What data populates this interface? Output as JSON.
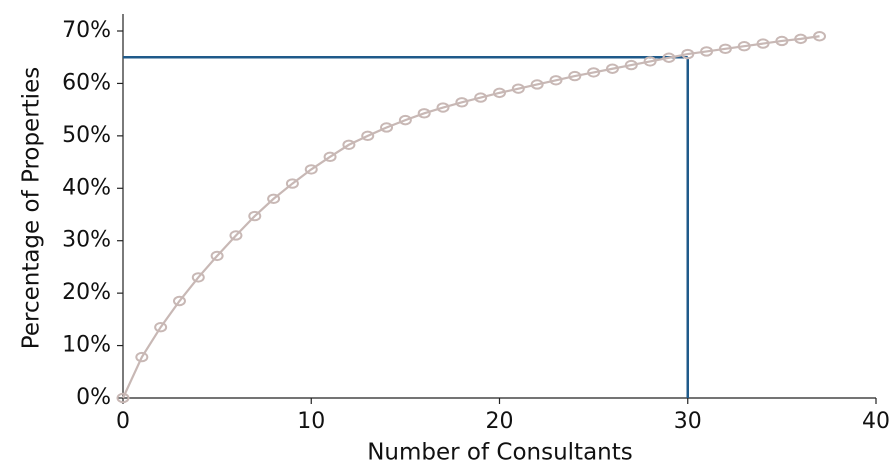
{
  "chart_data": {
    "type": "line",
    "title": "",
    "xlabel": "Number of Consultants",
    "ylabel": "Percentage of Properties",
    "xlim": [
      0,
      40
    ],
    "ylim": [
      0,
      0.7
    ],
    "x_ticks": [
      0,
      10,
      20,
      30,
      40
    ],
    "x_tick_labels": [
      "0",
      "10",
      "20",
      "30",
      "40"
    ],
    "y_ticks": [
      0,
      0.1,
      0.2,
      0.3,
      0.4,
      0.5,
      0.6,
      0.7
    ],
    "y_tick_labels": [
      "0%",
      "10%",
      "20%",
      "30%",
      "40%",
      "50%",
      "60%",
      "70%"
    ],
    "grid": false,
    "legend": "none",
    "series": [
      {
        "color": "#c8b8b5",
        "marker": "circle",
        "x": [
          0,
          1,
          2,
          3,
          4,
          5,
          6,
          7,
          8,
          9,
          10,
          11,
          12,
          13,
          14,
          15,
          16,
          17,
          18,
          19,
          20,
          21,
          22,
          23,
          24,
          25,
          26,
          27,
          28,
          29,
          30,
          31,
          32,
          33,
          34,
          35,
          36,
          37
        ],
        "values": [
          0.0,
          0.078,
          0.135,
          0.185,
          0.23,
          0.271,
          0.31,
          0.347,
          0.38,
          0.409,
          0.436,
          0.46,
          0.483,
          0.5,
          0.516,
          0.53,
          0.543,
          0.554,
          0.564,
          0.573,
          0.582,
          0.59,
          0.598,
          0.606,
          0.614,
          0.621,
          0.628,
          0.635,
          0.642,
          0.649,
          0.656,
          0.661,
          0.666,
          0.671,
          0.676,
          0.681,
          0.685,
          0.69
        ]
      }
    ],
    "reference_lines": {
      "color": "#1f5a8a",
      "y_value": 0.65,
      "x_value": 30
    }
  }
}
